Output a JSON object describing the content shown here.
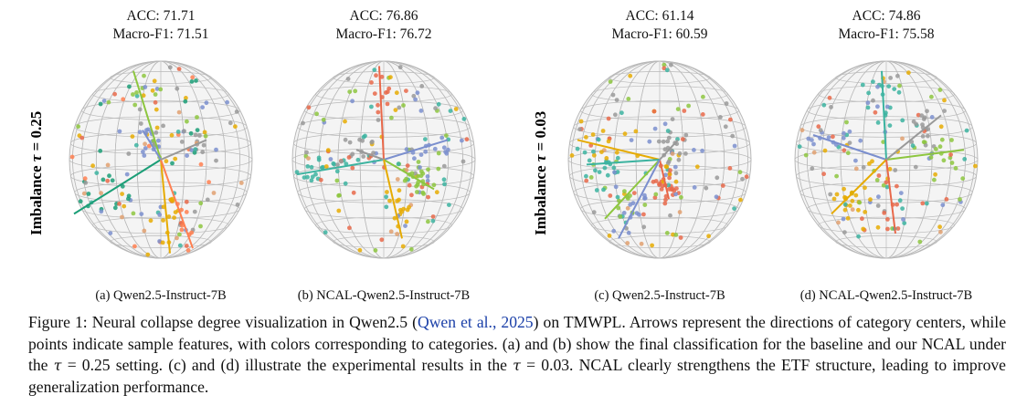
{
  "panels": [
    {
      "acc": "ACC: 71.71",
      "f1": "Macro-F1: 71.51",
      "label": "(a) Qwen2.5-Instruct-7B",
      "arrows": [
        {
          "color": "#8dc63f",
          "dir": [
            -0.3,
            -0.9
          ]
        },
        {
          "color": "#1b9e77",
          "dir": [
            -0.95,
            0.55
          ]
        },
        {
          "color": "#e6ab02",
          "dir": [
            0.1,
            0.95
          ]
        },
        {
          "color": "#ff7f50",
          "dir": [
            0.35,
            0.9
          ]
        },
        {
          "color": "#7b8fce",
          "dir": [
            -0.2,
            -0.3
          ]
        },
        {
          "color": "#999999",
          "dir": [
            0.5,
            -0.2
          ]
        }
      ]
    },
    {
      "acc": "ACC: 76.86",
      "f1": "Macro-F1: 76.72",
      "label": "(b) NCAL-Qwen2.5-Instruct-7B",
      "arrows": [
        {
          "color": "#e8684a",
          "dir": [
            -0.05,
            -0.95
          ]
        },
        {
          "color": "#3cb3a0",
          "dir": [
            -0.95,
            0.15
          ]
        },
        {
          "color": "#7b8fce",
          "dir": [
            0.7,
            -0.2
          ]
        },
        {
          "color": "#8dc63f",
          "dir": [
            0.55,
            0.3
          ]
        },
        {
          "color": "#e6ab02",
          "dir": [
            0.2,
            0.8
          ]
        },
        {
          "color": "#999999",
          "dir": [
            -0.3,
            -0.1
          ]
        }
      ]
    },
    {
      "acc": "ACC: 61.14",
      "f1": "Macro-F1: 60.59",
      "label": "(c) Qwen2.5-Instruct-7B",
      "arrows": [
        {
          "color": "#e6ab02",
          "dir": [
            -0.9,
            -0.2
          ]
        },
        {
          "color": "#8dc63f",
          "dir": [
            -0.6,
            0.6
          ]
        },
        {
          "color": "#3cb3a0",
          "dir": [
            -0.8,
            0.05
          ]
        },
        {
          "color": "#e8684a",
          "dir": [
            0.1,
            0.4
          ]
        },
        {
          "color": "#7b8fce",
          "dir": [
            -0.45,
            0.8
          ]
        },
        {
          "color": "#999999",
          "dir": [
            0.2,
            -0.2
          ]
        }
      ]
    },
    {
      "acc": "ACC: 74.86",
      "f1": "Macro-F1: 75.58",
      "label": "(d) NCAL-Qwen2.5-Instruct-7B",
      "arrows": [
        {
          "color": "#7b8fce",
          "dir": [
            -0.8,
            -0.25
          ]
        },
        {
          "color": "#3cb3a0",
          "dir": [
            -0.05,
            -0.9
          ]
        },
        {
          "color": "#8dc63f",
          "dir": [
            0.85,
            -0.1
          ]
        },
        {
          "color": "#e6ab02",
          "dir": [
            -0.6,
            0.55
          ]
        },
        {
          "color": "#e8684a",
          "dir": [
            0.1,
            0.75
          ]
        },
        {
          "color": "#999999",
          "dir": [
            0.6,
            -0.45
          ]
        }
      ]
    }
  ],
  "row_labels": [
    {
      "prefix": "Imbalance ",
      "tau": "τ",
      "suffix": " = 0.25"
    },
    {
      "prefix": "Imbalance ",
      "tau": "τ",
      "suffix": " = 0.03"
    }
  ],
  "caption": {
    "part1": "Figure 1: Neural collapse degree visualization in Qwen2.5 (",
    "cite": "Qwen et al., 2025",
    "part2": ") on TMWPL. Arrows represent the directions of category centers, while points indicate sample features, with colors corresponding to categories. (a) and (b) show the final classification for the baseline and our NCAL under the ",
    "tau1": "τ",
    "part3": " = 0.25 setting. (c) and (d) illustrate the experimental results in the ",
    "tau2": "τ",
    "part4": " = 0.03. NCAL clearly strengthens the ETF structure, leading to improve generalization performance."
  },
  "colors": {
    "grid": "#b9b9b9",
    "sphere_fill": "#f4f4f4",
    "citation": "#1a3fa8",
    "category_palette": [
      "#7b8fce",
      "#8dc63f",
      "#e8684a",
      "#e6ab02",
      "#3cb3a0",
      "#999999",
      "#e0a070"
    ]
  }
}
